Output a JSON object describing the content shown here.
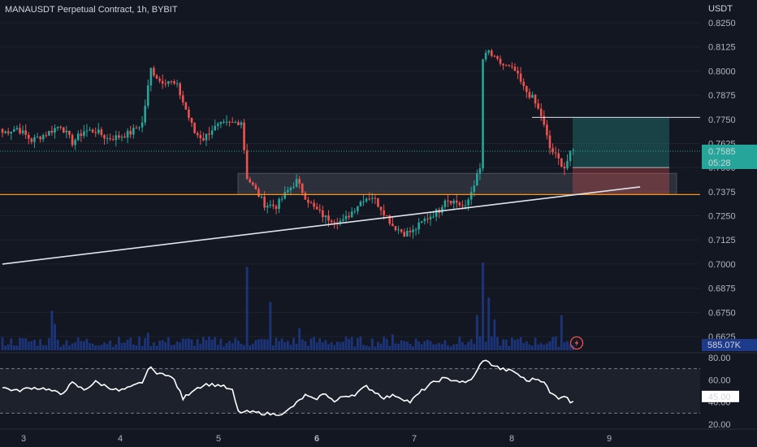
{
  "title": "MANAUSDT Perpetual Contract, 1h, BYBIT",
  "colors": {
    "background": "#131722",
    "up": "#26a69a",
    "down": "#ef5350",
    "volume": "#1e3a8a",
    "grid": "#1e222d",
    "orange": "#f7931a",
    "trendline": "#e0e3eb",
    "tp_zone": "rgba(38,166,154,0.30)",
    "sl_zone": "rgba(239,83,80,0.30)"
  },
  "lightning_icon": "lightning-icon",
  "chart_data": {
    "type": "candlestick",
    "currency_label": "USDT",
    "price_ticks": [
      "0.8250",
      "0.8125",
      "0.8000",
      "0.7875",
      "0.7750",
      "0.7625",
      "0.7500",
      "0.7375",
      "0.7250",
      "0.7125",
      "0.7000",
      "0.6875",
      "0.6750",
      "0.6625"
    ],
    "price_range": [
      0.6625,
      0.825
    ],
    "x_ticks": [
      "3",
      "4",
      "5",
      "6",
      "7",
      "8",
      "9"
    ],
    "x_tick_bold": "6",
    "current_price": "0.7585",
    "countdown": "05:28",
    "volume_label": "585.07K",
    "rsi": {
      "ticks": [
        "80.00",
        "60.00",
        "40.00",
        "20.00"
      ],
      "range": [
        20,
        80
      ],
      "bands": [
        70,
        30
      ],
      "current": "45.00",
      "anchors": [
        [
          0,
          53
        ],
        [
          5,
          50
        ],
        [
          10,
          53
        ],
        [
          15,
          52
        ],
        [
          20,
          47
        ],
        [
          24,
          57
        ],
        [
          28,
          51
        ],
        [
          32,
          58
        ],
        [
          36,
          54
        ],
        [
          40,
          50
        ],
        [
          44,
          53
        ],
        [
          48,
          58
        ],
        [
          51,
          73
        ],
        [
          53,
          64
        ],
        [
          55,
          67
        ],
        [
          59,
          60
        ],
        [
          62,
          43
        ],
        [
          66,
          52
        ],
        [
          70,
          56
        ],
        [
          75,
          55
        ],
        [
          79,
          50
        ],
        [
          81,
          31
        ],
        [
          85,
          31
        ],
        [
          89,
          30
        ],
        [
          93,
          29
        ],
        [
          97,
          30
        ],
        [
          101,
          39
        ],
        [
          104,
          46
        ],
        [
          107,
          42
        ],
        [
          111,
          48
        ],
        [
          114,
          40
        ],
        [
          117,
          45
        ],
        [
          121,
          47
        ],
        [
          125,
          54
        ],
        [
          128,
          49
        ],
        [
          131,
          44
        ],
        [
          135,
          46
        ],
        [
          140,
          40
        ],
        [
          144,
          50
        ],
        [
          147,
          56
        ],
        [
          151,
          61
        ],
        [
          155,
          60
        ],
        [
          159,
          57
        ],
        [
          162,
          63
        ],
        [
          165,
          78
        ],
        [
          168,
          74
        ],
        [
          171,
          70
        ],
        [
          176,
          67
        ],
        [
          180,
          59
        ],
        [
          183,
          61
        ],
        [
          186,
          59
        ],
        [
          188,
          48
        ],
        [
          191,
          44
        ],
        [
          193,
          46
        ],
        [
          195,
          40
        ],
        [
          197,
          44
        ]
      ]
    },
    "candles": {
      "count": 197,
      "anchors": [
        [
          0,
          0.768
        ],
        [
          5,
          0.7705
        ],
        [
          10,
          0.764
        ],
        [
          15,
          0.7675
        ],
        [
          20,
          0.772
        ],
        [
          24,
          0.763
        ],
        [
          28,
          0.769
        ],
        [
          32,
          0.769
        ],
        [
          36,
          0.765
        ],
        [
          40,
          0.766
        ],
        [
          44,
          0.768
        ],
        [
          48,
          0.773
        ],
        [
          51,
          0.801
        ],
        [
          54,
          0.795
        ],
        [
          57,
          0.795
        ],
        [
          60,
          0.792
        ],
        [
          63,
          0.78
        ],
        [
          66,
          0.768
        ],
        [
          69,
          0.765
        ],
        [
          72,
          0.77
        ],
        [
          75,
          0.772
        ],
        [
          79,
          0.773
        ],
        [
          82,
          0.774
        ],
        [
          84,
          0.745
        ],
        [
          87,
          0.738
        ],
        [
          90,
          0.731
        ],
        [
          94,
          0.73
        ],
        [
          98,
          0.738
        ],
        [
          101,
          0.743
        ],
        [
          104,
          0.735
        ],
        [
          107,
          0.729
        ],
        [
          111,
          0.724
        ],
        [
          114,
          0.723
        ],
        [
          117,
          0.722
        ],
        [
          121,
          0.729
        ],
        [
          124,
          0.734
        ],
        [
          127,
          0.735
        ],
        [
          131,
          0.727
        ],
        [
          134,
          0.72
        ],
        [
          138,
          0.716
        ],
        [
          141,
          0.717
        ],
        [
          145,
          0.723
        ],
        [
          150,
          0.728
        ],
        [
          152,
          0.734
        ],
        [
          156,
          0.732
        ],
        [
          159,
          0.729
        ],
        [
          162,
          0.742
        ],
        [
          164,
          0.749
        ],
        [
          165,
          0.806
        ],
        [
          167,
          0.81
        ],
        [
          169,
          0.806
        ],
        [
          172,
          0.803
        ],
        [
          176,
          0.8
        ],
        [
          179,
          0.791
        ],
        [
          182,
          0.786
        ],
        [
          185,
          0.777
        ],
        [
          188,
          0.76
        ],
        [
          191,
          0.754
        ],
        [
          193,
          0.75
        ],
        [
          195,
          0.757
        ],
        [
          196,
          0.7585
        ]
      ]
    },
    "volume": {
      "scale_max": 1.0,
      "spikes": [
        [
          17,
          0.45
        ],
        [
          18,
          0.3
        ],
        [
          50,
          0.2
        ],
        [
          84,
          0.95
        ],
        [
          92,
          0.55
        ],
        [
          102,
          0.25
        ],
        [
          134,
          0.18
        ],
        [
          163,
          0.4
        ],
        [
          165,
          1.0
        ],
        [
          167,
          0.6
        ],
        [
          169,
          0.35
        ],
        [
          192,
          0.4
        ]
      ]
    },
    "levels": {
      "zone_top": 0.747,
      "zone_bottom": 0.736,
      "orange_line": 0.736,
      "target_line": 0.776,
      "entry_price": 0.75,
      "stop_price": 0.736,
      "target_price": 0.776
    },
    "trendline": {
      "from": [
        0,
        0.7
      ],
      "to": [
        219,
        0.74
      ]
    }
  }
}
